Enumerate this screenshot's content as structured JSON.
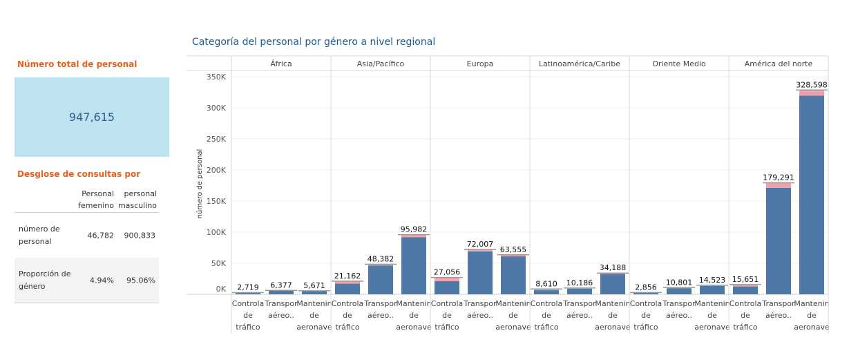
{
  "kpi": {
    "title": "Número total de personal",
    "value": "947,615"
  },
  "breakdown": {
    "title": "Desglose de consultas por",
    "headers": [
      "Personal femenino",
      "personal masculino"
    ],
    "rows": [
      {
        "label": "número de personal",
        "female": "46,782",
        "male": "900,833"
      },
      {
        "label": "Proporción de género",
        "female": "4.94%",
        "male": "95.06%"
      }
    ]
  },
  "chart_data": {
    "type": "bar",
    "title": "Categoría del personal por género a nivel regional",
    "ylabel": "número de personal",
    "xlabel": "",
    "ylim": [
      0,
      360000
    ],
    "yticks": [
      0,
      50000,
      100000,
      150000,
      200000,
      250000,
      300000,
      350000
    ],
    "ytick_labels": [
      "0K",
      "50K",
      "100K",
      "150K",
      "200K",
      "250K",
      "300K",
      "350K"
    ],
    "category_labels": [
      [
        "Controla",
        "de",
        "tráfico"
      ],
      [
        "Transpor",
        "aéreo.."
      ],
      [
        "Mantenin",
        "de",
        "aeronave"
      ]
    ],
    "stacked": true,
    "grid": true,
    "colors": {
      "male": "#4e79a7",
      "female": "#f4a0aa",
      "total_line": "#999999"
    },
    "panels": [
      {
        "region": "África",
        "totals": [
          2719,
          6377,
          5671
        ],
        "female": [
          300,
          600,
          500
        ]
      },
      {
        "region": "Asia/Pacífico",
        "totals": [
          21162,
          48382,
          95982
        ],
        "female": [
          4000,
          2000,
          4000
        ]
      },
      {
        "region": "Europa",
        "totals": [
          27056,
          72007,
          63555
        ],
        "female": [
          6000,
          3000,
          2500
        ]
      },
      {
        "region": "Latinoamérica/Caribe",
        "totals": [
          8610,
          10186,
          34188
        ],
        "female": [
          2000,
          1000,
          1500
        ]
      },
      {
        "region": "Oriente Medio",
        "totals": [
          2856,
          10801,
          14523
        ],
        "female": [
          500,
          1000,
          1000
        ]
      },
      {
        "region": "América del norte",
        "totals": [
          15651,
          179291,
          328598
        ],
        "female": [
          3000,
          8000,
          9000
        ]
      }
    ]
  }
}
